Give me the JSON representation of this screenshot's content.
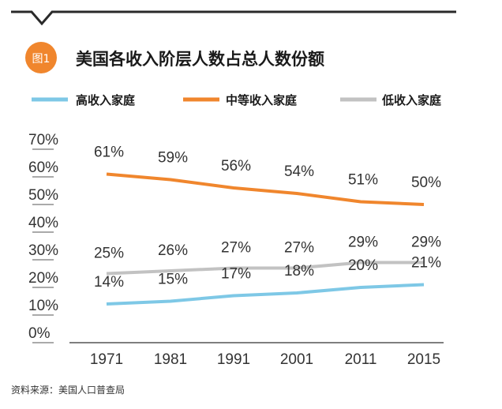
{
  "header": {
    "badge": "图1",
    "title": "美国各收入阶层人数占总人数份额"
  },
  "colors": {
    "accent": "#f0862d",
    "high": "#7ec8e6",
    "middle": "#f0862d",
    "low": "#c2c2c2",
    "rule": "#2a2a2a",
    "axis": "#555555"
  },
  "source": "资料来源：美国人口普查局",
  "chart_data": {
    "type": "line",
    "title": "美国各收入阶层人数占总人数份额",
    "xlabel": "",
    "ylabel": "",
    "categories": [
      "1971",
      "1981",
      "1991",
      "2001",
      "2011",
      "2015"
    ],
    "series": [
      {
        "key": "high",
        "name": "高收入家庭",
        "values": [
          14,
          15,
          17,
          18,
          20,
          21
        ]
      },
      {
        "key": "middle",
        "name": "中等收入家庭",
        "values": [
          61,
          59,
          56,
          54,
          51,
          50
        ]
      },
      {
        "key": "low",
        "name": "低收入家庭",
        "values": [
          25,
          26,
          27,
          27,
          29,
          29
        ]
      }
    ],
    "legend_order": [
      "high",
      "middle",
      "low"
    ],
    "data_labels": {
      "high": [
        "14%",
        "15%",
        "17%",
        "18%",
        "20%",
        "21%"
      ],
      "middle": [
        "61%",
        "59%",
        "56%",
        "54%",
        "51%",
        "50%"
      ],
      "low": [
        "25%",
        "26%",
        "27%",
        "27%",
        "29%",
        "29%"
      ]
    },
    "yticks": [
      "70%",
      "60%",
      "50%",
      "40%",
      "30%",
      "20%",
      "10%",
      "0%"
    ],
    "ylim": [
      0,
      70
    ],
    "grid": false,
    "legend_position": "top"
  }
}
